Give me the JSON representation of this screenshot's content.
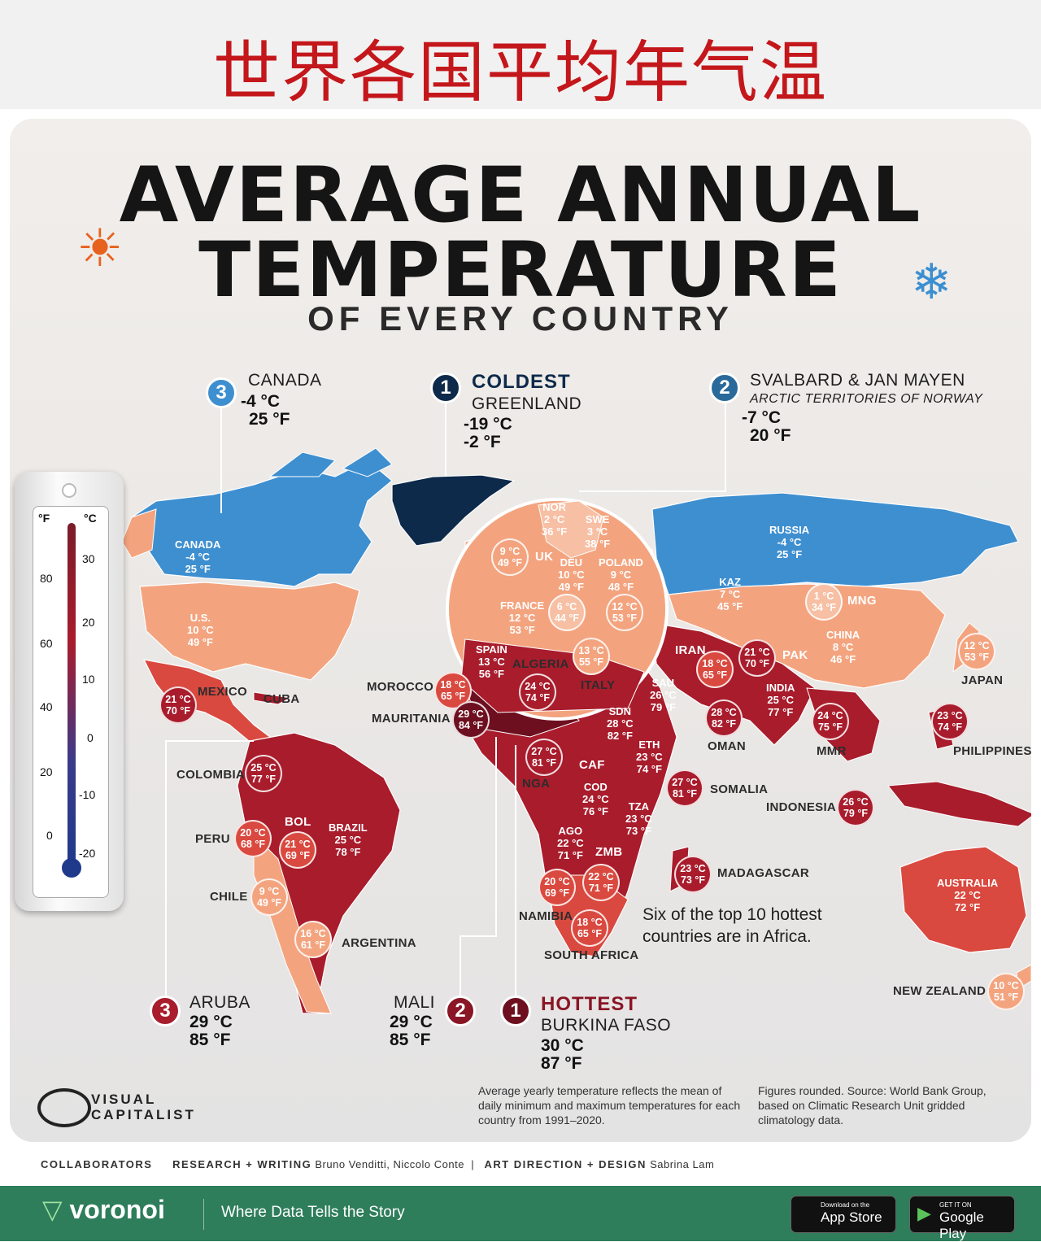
{
  "header": {
    "cn_title": "世界各国平均年气温"
  },
  "title": {
    "line1": "AVERAGE ANNUAL",
    "line2": "TEMPERATURE",
    "subtitle": "OF EVERY COUNTRY"
  },
  "colors": {
    "coldest": "#0d2a4a",
    "cold": "#3e8fd0",
    "mild": "#f3a47f",
    "warm": "#d9493f",
    "hot": "#a81c2c",
    "hottest": "#6d0f1f",
    "bg": "#eeebe8",
    "footer": "#2e7d5b"
  },
  "callouts": {
    "coldest": {
      "rank": "1",
      "head": "COLDEST",
      "name": "GREENLAND",
      "c": "-19 °C",
      "f": "-2 °F"
    },
    "cold2": {
      "rank": "2",
      "name": "SVALBARD & JAN MAYEN",
      "sub": "ARCTIC TERRITORIES OF NORWAY",
      "c": "-7 °C",
      "f": "20 °F"
    },
    "cold3": {
      "rank": "3",
      "name": "CANADA",
      "c": "-4 °C",
      "f": "25 °F"
    },
    "hottest": {
      "rank": "1",
      "head": "HOTTEST",
      "name": "BURKINA FASO",
      "c": "30 °C",
      "f": "87 °F"
    },
    "hot2": {
      "rank": "2",
      "name": "MALI",
      "c": "29 °C",
      "f": "85 °F"
    },
    "hot3": {
      "rank": "3",
      "name": "ARUBA",
      "c": "29 °C",
      "f": "85 °F"
    }
  },
  "map_text": {
    "canada": {
      "name": "CANADA",
      "c": "-4 °C",
      "f": "25 °F"
    },
    "us": {
      "name": "U.S.",
      "c": "10 °C",
      "f": "49 °F"
    },
    "russia": {
      "name": "RUSSIA",
      "c": "-4 °C",
      "f": "25 °F"
    },
    "kaz": {
      "name": "KAZ",
      "c": "7 °C",
      "f": "45 °F"
    },
    "china": {
      "name": "CHINA",
      "c": "8 °C",
      "f": "46 °F"
    },
    "australia": {
      "name": "AUSTRALIA",
      "c": "22 °C",
      "f": "72 °F"
    },
    "brazil": {
      "name": "BRAZIL",
      "c": "25 °C",
      "f": "78 °F"
    },
    "sau": {
      "name": "SAU",
      "c": "26 °C",
      "f": "79 °F"
    },
    "sdn": {
      "name": "SDN",
      "c": "28 °C",
      "f": "82 °F"
    },
    "eth": {
      "name": "ETH",
      "c": "23 °C",
      "f": "74 °F"
    },
    "cod": {
      "name": "COD",
      "c": "24 °C",
      "f": "76 °F"
    },
    "tza": {
      "name": "TZA",
      "c": "23 °C",
      "f": "73 °F"
    },
    "ago": {
      "name": "AGO",
      "c": "22 °C",
      "f": "71 °F"
    },
    "india": {
      "name": "INDIA",
      "c": "25 °C",
      "f": "77 °F"
    },
    "nor": {
      "name": "NOR",
      "c": "2 °C",
      "f": "36 °F"
    },
    "swe": {
      "name": "SWE",
      "c": "3 °C",
      "f": "38 °F"
    },
    "deu": {
      "name": "DEU",
      "c": "10 °C",
      "f": "49 °F"
    },
    "poland": {
      "name": "POLAND",
      "c": "9 °C",
      "f": "48 °F"
    },
    "france": {
      "name": "FRANCE",
      "c": "12 °C",
      "f": "53 °F"
    },
    "spain": {
      "name": "SPAIN",
      "c": "13 °C",
      "f": "56 °F"
    }
  },
  "bubbles": [
    {
      "c": "9 °C",
      "f": "49 °F"
    },
    {
      "c": "6 °C",
      "f": "44 °F"
    },
    {
      "c": "12 °C",
      "f": "53 °F"
    },
    {
      "c": "13 °C",
      "f": "55 °F"
    },
    {
      "c": "1 °C",
      "f": "34 °F"
    },
    {
      "c": "21 °C",
      "f": "70 °F"
    },
    {
      "c": "18 °C",
      "f": "65 °F"
    },
    {
      "c": "12 °C",
      "f": "53 °F"
    },
    {
      "c": "21 °C",
      "f": "70 °F"
    },
    {
      "c": "18 °C",
      "f": "65 °F"
    },
    {
      "c": "24 °C",
      "f": "74 °F"
    },
    {
      "c": "29 °C",
      "f": "84 °F"
    },
    {
      "c": "27 °C",
      "f": "81 °F"
    },
    {
      "c": "28 °C",
      "f": "82 °F"
    },
    {
      "c": "24 °C",
      "f": "75 °F"
    },
    {
      "c": "23 °C",
      "f": "74 °F"
    },
    {
      "c": "27 °C",
      "f": "81 °F"
    },
    {
      "c": "26 °C",
      "f": "79 °F"
    },
    {
      "c": "23 °C",
      "f": "73 °F"
    },
    {
      "c": "20 °C",
      "f": "69 °F"
    },
    {
      "c": "22 °C",
      "f": "71 °F"
    },
    {
      "c": "18 °C",
      "f": "65 °F"
    },
    {
      "c": "25 °C",
      "f": "77 °F"
    },
    {
      "c": "20 °C",
      "f": "68 °F"
    },
    {
      "c": "21 °C",
      "f": "69 °F"
    },
    {
      "c": "9 °C",
      "f": "49 °F"
    },
    {
      "c": "16 °C",
      "f": "61 °F"
    },
    {
      "c": "10 °C",
      "f": "51 °F"
    }
  ],
  "labels": {
    "uk": "UK",
    "mng": "MNG",
    "iran": "IRAN",
    "pak": "PAK",
    "japan": "JAPAN",
    "mexico": "MEXICO",
    "cuba": "CUBA",
    "morocco": "MOROCCO",
    "algeria": "ALGERIA",
    "italy": "ITALY",
    "mauritania": "MAURITANIA",
    "oman": "OMAN",
    "mmr": "MMR",
    "philippines": "PHILIPPINES",
    "nga": "NGA",
    "caf": "CAF",
    "somalia": "SOMALIA",
    "indonesia": "INDONESIA",
    "colombia": "COLOMBIA",
    "zmb": "ZMB",
    "madagascar": "MADAGASCAR",
    "peru": "PERU",
    "bol": "BOL",
    "chile": "CHILE",
    "namibia": "NAMIBIA",
    "argentina": "ARGENTINA",
    "south_africa": "SOUTH AFRICA",
    "new_zealand": "NEW ZEALAND"
  },
  "africa_note": "Six of the top 10 hottest countries are in Africa.",
  "thermometer": {
    "f_label": "°F",
    "c_label": "°C",
    "f_ticks": [
      "80",
      "60",
      "40",
      "20",
      "0"
    ],
    "c_ticks": [
      "30",
      "20",
      "10",
      "0",
      "-10",
      "-20"
    ]
  },
  "notes": {
    "method": "Average yearly temperature reflects the mean of daily minimum and maximum temperatures for each country from 1991–2020.",
    "source": "Figures rounded. Source: World Bank Group, based on Climatic Research Unit gridded climatology data."
  },
  "brand": {
    "line1": "VISUAL",
    "line2": "CAPITALIST"
  },
  "collaborators": {
    "label": "COLLABORATORS",
    "rw_label": "RESEARCH + WRITING",
    "rw_names": "Bruno Venditti, Niccolo Conte",
    "sep": "|",
    "ad_label": "ART DIRECTION + DESIGN",
    "ad_names": "Sabrina Lam"
  },
  "footer": {
    "logo": "voronoi",
    "tagline": "Where Data Tells the Story",
    "appstore_small": "Download on the",
    "appstore": "App Store",
    "gplay_small": "GET IT ON",
    "gplay": "Google Play"
  }
}
